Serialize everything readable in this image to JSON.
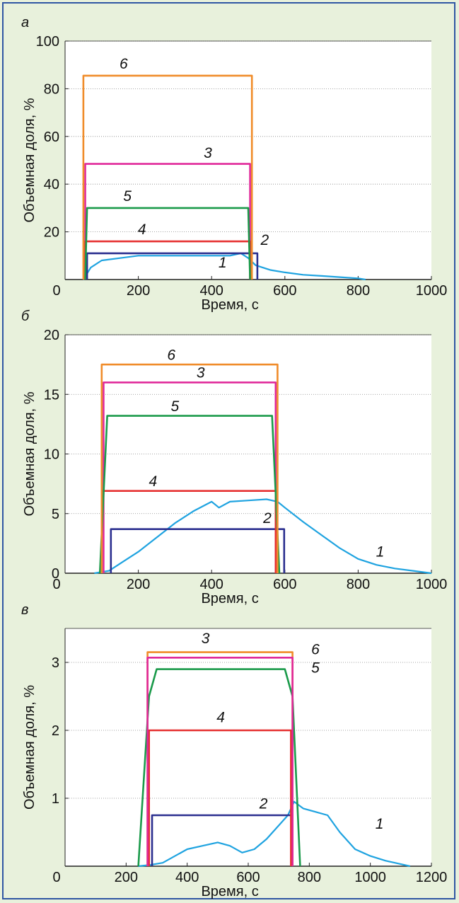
{
  "chart_data": [
    {
      "type": "line",
      "panel_label": "а",
      "xlabel": "Время, с",
      "ylabel": "Объемная доля, %",
      "xlim": [
        0,
        1000
      ],
      "ylim": [
        0,
        100
      ],
      "xticks": [
        0,
        200,
        400,
        600,
        800,
        1000
      ],
      "yticks": [
        0,
        20,
        40,
        60,
        80,
        100
      ],
      "ytick_labels": [
        "0",
        "20",
        "40",
        "60",
        "80",
        "100"
      ],
      "grid": "horizontal dotted",
      "series": [
        {
          "label": "1",
          "color": "#1fa3e0",
          "x": [
            50,
            70,
            100,
            150,
            200,
            250,
            300,
            350,
            400,
            450,
            480,
            500,
            520,
            560,
            600,
            650,
            700,
            750,
            800,
            820
          ],
          "y": [
            0,
            5,
            8,
            9,
            10,
            10,
            10,
            10,
            10,
            10,
            11,
            9,
            6,
            4,
            3,
            2,
            1.5,
            1,
            0.5,
            0
          ]
        },
        {
          "label": "2",
          "color": "#2b2f8f",
          "x": [
            60,
            60,
            525,
            525
          ],
          "y": [
            0,
            11,
            11,
            0
          ]
        },
        {
          "label": "3",
          "color": "#e0289a",
          "x": [
            55,
            55,
            505,
            505
          ],
          "y": [
            0,
            48.5,
            48.5,
            0
          ]
        },
        {
          "label": "4",
          "color": "#e63030",
          "x": [
            55,
            55,
            505,
            505
          ],
          "y": [
            0,
            16,
            16,
            0
          ]
        },
        {
          "label": "5",
          "color": "#1a9a4a",
          "x": [
            55,
            60,
            500,
            505
          ],
          "y": [
            0,
            30,
            30,
            0
          ]
        },
        {
          "label": "6",
          "color": "#f08c2a",
          "x": [
            50,
            50,
            510,
            510
          ],
          "y": [
            0,
            85.5,
            85.5,
            0
          ]
        }
      ]
    },
    {
      "type": "line",
      "panel_label": "б",
      "xlabel": "Время, с",
      "ylabel": "Объемная доля, %",
      "xlim": [
        0,
        1000
      ],
      "ylim": [
        0,
        20
      ],
      "xticks": [
        0,
        200,
        400,
        600,
        800,
        1000
      ],
      "yticks": [
        0,
        5,
        10,
        15,
        20
      ],
      "ytick_labels": [
        "0",
        "5",
        "10",
        "15",
        "20"
      ],
      "grid": "horizontal dotted",
      "series": [
        {
          "label": "1",
          "color": "#1fa3e0",
          "x": [
            80,
            120,
            160,
            200,
            250,
            300,
            350,
            400,
            420,
            450,
            500,
            550,
            580,
            600,
            650,
            700,
            750,
            800,
            850,
            900,
            950,
            1000
          ],
          "y": [
            0,
            0.2,
            1,
            1.8,
            3,
            4.2,
            5.2,
            6,
            5.5,
            6,
            6.1,
            6.2,
            6,
            5.5,
            4.3,
            3.2,
            2.1,
            1.2,
            0.7,
            0.4,
            0.2,
            0
          ]
        },
        {
          "label": "2",
          "color": "#2b2f8f",
          "x": [
            125,
            125,
            598,
            598
          ],
          "y": [
            0,
            3.7,
            3.7,
            0
          ]
        },
        {
          "label": "3",
          "color": "#e0289a",
          "x": [
            105,
            105,
            575,
            575
          ],
          "y": [
            0,
            16,
            16,
            0
          ]
        },
        {
          "label": "4",
          "color": "#e63030",
          "x": [
            100,
            100,
            575,
            575
          ],
          "y": [
            0,
            6.9,
            6.9,
            0
          ]
        },
        {
          "label": "5",
          "color": "#1a9a4a",
          "x": [
            95,
            115,
            565,
            585
          ],
          "y": [
            0,
            13.2,
            13.2,
            0
          ]
        },
        {
          "label": "6",
          "color": "#f08c2a",
          "x": [
            100,
            100,
            580,
            580
          ],
          "y": [
            0,
            17.5,
            17.5,
            0
          ]
        }
      ]
    },
    {
      "type": "line",
      "panel_label": "в",
      "xlabel": "Время, с",
      "ylabel": "Объемная доля, %",
      "xlim": [
        0,
        1200
      ],
      "ylim": [
        0,
        3.5
      ],
      "xticks": [
        0,
        200,
        400,
        600,
        800,
        1000,
        1200
      ],
      "yticks": [
        1,
        2,
        3
      ],
      "ytick_labels": [
        "1",
        "2",
        "3"
      ],
      "grid": "horizontal dotted",
      "series": [
        {
          "label": "1",
          "color": "#1fa3e0",
          "x": [
            240,
            280,
            320,
            360,
            400,
            450,
            500,
            540,
            580,
            620,
            660,
            700,
            730,
            750,
            780,
            820,
            860,
            900,
            950,
            1000,
            1050,
            1100,
            1130
          ],
          "y": [
            0,
            0.02,
            0.05,
            0.15,
            0.25,
            0.3,
            0.35,
            0.3,
            0.2,
            0.25,
            0.4,
            0.6,
            0.75,
            0.95,
            0.85,
            0.8,
            0.75,
            0.5,
            0.25,
            0.15,
            0.08,
            0.03,
            0
          ]
        },
        {
          "label": "2",
          "color": "#2b2f8f",
          "x": [
            285,
            285,
            745,
            745
          ],
          "y": [
            0,
            0.75,
            0.75,
            0
          ]
        },
        {
          "label": "3",
          "color": "#f08c2a",
          "x": [
            270,
            270,
            745,
            745
          ],
          "y": [
            0,
            3.15,
            3.15,
            0
          ]
        },
        {
          "label": "4",
          "color": "#e63030",
          "x": [
            275,
            275,
            740,
            740
          ],
          "y": [
            0,
            2,
            2,
            0
          ]
        },
        {
          "label": "5",
          "color": "#1a9a4a",
          "x": [
            240,
            275,
            300,
            720,
            745,
            770
          ],
          "y": [
            0,
            2.5,
            2.9,
            2.9,
            2.5,
            0
          ]
        },
        {
          "label": "6",
          "color": "#e0289a",
          "x": [
            270,
            270,
            745,
            745
          ],
          "y": [
            0,
            3.07,
            3.07,
            0
          ]
        }
      ]
    }
  ]
}
